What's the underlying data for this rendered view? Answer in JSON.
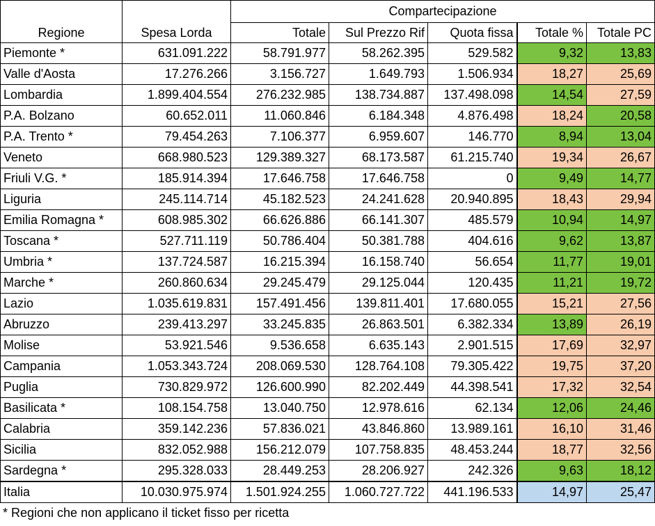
{
  "colors": {
    "green": "#7cc242",
    "salmon": "#f8cbad",
    "blue": "#bdd7ee"
  },
  "headers": {
    "regione": "Regione",
    "spesa_lorda": "Spesa Lorda",
    "group": "Compartecipazione",
    "totale": "Totale",
    "sul_prezzo_rif": "Sul Prezzo Rif",
    "quota_fissa": "Quota fissa",
    "totale_pct": "Totale %",
    "totale_pc": "Totale PC"
  },
  "rows": [
    {
      "regione": "Piemonte *",
      "spesa": "631.091.222",
      "totale": "58.791.977",
      "prezzo": "58.262.395",
      "quota": "529.582",
      "pct": "9,32",
      "pc": "13,83",
      "pct_color": "green",
      "pc_color": "green"
    },
    {
      "regione": "Valle d'Aosta",
      "spesa": "17.276.266",
      "totale": "3.156.727",
      "prezzo": "1.649.793",
      "quota": "1.506.934",
      "pct": "18,27",
      "pc": "25,69",
      "pct_color": "salmon",
      "pc_color": "salmon"
    },
    {
      "regione": "Lombardia",
      "spesa": "1.899.404.554",
      "totale": "276.232.985",
      "prezzo": "138.734.887",
      "quota": "137.498.098",
      "pct": "14,54",
      "pc": "27,59",
      "pct_color": "green",
      "pc_color": "salmon"
    },
    {
      "regione": "P.A. Bolzano",
      "spesa": "60.652.011",
      "totale": "11.060.846",
      "prezzo": "6.184.348",
      "quota": "4.876.498",
      "pct": "18,24",
      "pc": "20,58",
      "pct_color": "salmon",
      "pc_color": "green"
    },
    {
      "regione": "P.A. Trento *",
      "spesa": "79.454.263",
      "totale": "7.106.377",
      "prezzo": "6.959.607",
      "quota": "146.770",
      "pct": "8,94",
      "pc": "13,04",
      "pct_color": "green",
      "pc_color": "green"
    },
    {
      "regione": "Veneto",
      "spesa": "668.980.523",
      "totale": "129.389.327",
      "prezzo": "68.173.587",
      "quota": "61.215.740",
      "pct": "19,34",
      "pc": "26,67",
      "pct_color": "salmon",
      "pc_color": "salmon"
    },
    {
      "regione": "Friuli V.G. *",
      "spesa": "185.914.394",
      "totale": "17.646.758",
      "prezzo": "17.646.758",
      "quota": "0",
      "pct": "9,49",
      "pc": "14,77",
      "pct_color": "green",
      "pc_color": "green"
    },
    {
      "regione": "Liguria",
      "spesa": "245.114.714",
      "totale": "45.182.523",
      "prezzo": "24.241.628",
      "quota": "20.940.895",
      "pct": "18,43",
      "pc": "29,94",
      "pct_color": "salmon",
      "pc_color": "salmon"
    },
    {
      "regione": "Emilia Romagna *",
      "spesa": "608.985.302",
      "totale": "66.626.886",
      "prezzo": "66.141.307",
      "quota": "485.579",
      "pct": "10,94",
      "pc": "14,97",
      "pct_color": "green",
      "pc_color": "green"
    },
    {
      "regione": "Toscana *",
      "spesa": "527.711.119",
      "totale": "50.786.404",
      "prezzo": "50.381.788",
      "quota": "404.616",
      "pct": "9,62",
      "pc": "13,87",
      "pct_color": "green",
      "pc_color": "green"
    },
    {
      "regione": "Umbria *",
      "spesa": "137.724.587",
      "totale": "16.215.394",
      "prezzo": "16.158.740",
      "quota": "56.654",
      "pct": "11,77",
      "pc": "19,01",
      "pct_color": "green",
      "pc_color": "green"
    },
    {
      "regione": "Marche *",
      "spesa": "260.860.634",
      "totale": "29.245.479",
      "prezzo": "29.125.044",
      "quota": "120.435",
      "pct": "11,21",
      "pc": "19,72",
      "pct_color": "green",
      "pc_color": "green"
    },
    {
      "regione": "Lazio",
      "spesa": "1.035.619.831",
      "totale": "157.491.456",
      "prezzo": "139.811.401",
      "quota": "17.680.055",
      "pct": "15,21",
      "pc": "27,56",
      "pct_color": "salmon",
      "pc_color": "salmon"
    },
    {
      "regione": "Abruzzo",
      "spesa": "239.413.297",
      "totale": "33.245.835",
      "prezzo": "26.863.501",
      "quota": "6.382.334",
      "pct": "13,89",
      "pc": "26,19",
      "pct_color": "green",
      "pc_color": "salmon"
    },
    {
      "regione": "Molise",
      "spesa": "53.921.546",
      "totale": "9.536.658",
      "prezzo": "6.635.143",
      "quota": "2.901.515",
      "pct": "17,69",
      "pc": "32,97",
      "pct_color": "salmon",
      "pc_color": "salmon"
    },
    {
      "regione": "Campania",
      "spesa": "1.053.343.724",
      "totale": "208.069.530",
      "prezzo": "128.764.108",
      "quota": "79.305.422",
      "pct": "19,75",
      "pc": "37,20",
      "pct_color": "salmon",
      "pc_color": "salmon"
    },
    {
      "regione": "Puglia",
      "spesa": "730.829.972",
      "totale": "126.600.990",
      "prezzo": "82.202.449",
      "quota": "44.398.541",
      "pct": "17,32",
      "pc": "32,54",
      "pct_color": "salmon",
      "pc_color": "salmon"
    },
    {
      "regione": "Basilicata *",
      "spesa": "108.154.758",
      "totale": "13.040.750",
      "prezzo": "12.978.616",
      "quota": "62.134",
      "pct": "12,06",
      "pc": "24,46",
      "pct_color": "green",
      "pc_color": "green"
    },
    {
      "regione": "Calabria",
      "spesa": "359.142.236",
      "totale": "57.836.021",
      "prezzo": "43.846.860",
      "quota": "13.989.161",
      "pct": "16,10",
      "pc": "31,46",
      "pct_color": "salmon",
      "pc_color": "salmon"
    },
    {
      "regione": "Sicilia",
      "spesa": "832.052.988",
      "totale": "156.212.079",
      "prezzo": "107.758.835",
      "quota": "48.453.244",
      "pct": "18,77",
      "pc": "32,56",
      "pct_color": "salmon",
      "pc_color": "salmon"
    },
    {
      "regione": "Sardegna *",
      "spesa": "295.328.033",
      "totale": "28.449.253",
      "prezzo": "28.206.927",
      "quota": "242.326",
      "pct": "9,63",
      "pc": "18,12",
      "pct_color": "green",
      "pc_color": "green"
    }
  ],
  "total": {
    "regione": "Italia",
    "spesa": "10.030.975.974",
    "totale": "1.501.924.255",
    "prezzo": "1.060.727.722",
    "quota": "441.196.533",
    "pct": "14,97",
    "pc": "25,47",
    "pct_color": "blue",
    "pc_color": "blue"
  },
  "footnote": "* Regioni che non applicano il ticket fisso per ricetta"
}
